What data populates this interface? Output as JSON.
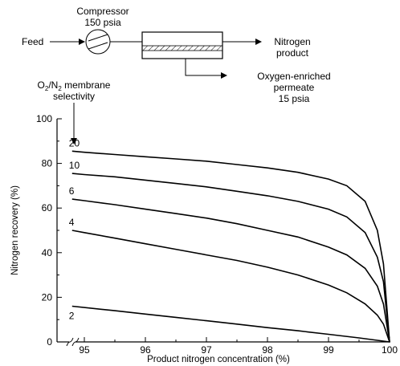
{
  "diagram": {
    "compressor_label": "Compressor",
    "compressor_pressure": "150 psia",
    "feed_label": "Feed",
    "nitrogen_label_line1": "Nitrogen",
    "nitrogen_label_line2": "product",
    "permeate_line1": "Oxygen-enriched",
    "permeate_line2": "permeate",
    "permeate_line3": "15 psia",
    "selectivity_pre": "O",
    "selectivity_sub1": "2",
    "selectivity_mid": "/N",
    "selectivity_sub2": "2",
    "selectivity_post": " membrane",
    "selectivity_line2": "selectivity"
  },
  "chart_data": {
    "type": "line",
    "title": "",
    "xlabel": "Product nitrogen concentration (%)",
    "ylabel": "Nitrogen recovery (%)",
    "xlim": [
      94.7,
      100
    ],
    "ylim": [
      0,
      100
    ],
    "x_ticks": [
      "95",
      "96",
      "97",
      "98",
      "99",
      "100"
    ],
    "y_ticks": [
      "0",
      "20",
      "40",
      "60",
      "80",
      "100"
    ],
    "grid": false,
    "axis_break": true,
    "series": [
      {
        "name": "2",
        "points": [
          [
            94.8,
            16
          ],
          [
            95.5,
            14
          ],
          [
            96,
            12.5
          ],
          [
            96.5,
            11
          ],
          [
            97,
            9.5
          ],
          [
            97.5,
            8
          ],
          [
            98,
            6.4
          ],
          [
            98.5,
            5
          ],
          [
            99,
            3.4
          ],
          [
            99.5,
            1.8
          ],
          [
            100,
            0
          ]
        ]
      },
      {
        "name": "4",
        "points": [
          [
            94.8,
            50
          ],
          [
            95,
            49
          ],
          [
            95.5,
            46.5
          ],
          [
            96,
            44
          ],
          [
            96.5,
            41.5
          ],
          [
            97,
            39
          ],
          [
            97.5,
            36.5
          ],
          [
            98,
            33.5
          ],
          [
            98.5,
            30
          ],
          [
            99,
            25.5
          ],
          [
            99.3,
            22
          ],
          [
            99.6,
            17
          ],
          [
            99.8,
            12
          ],
          [
            99.9,
            8
          ],
          [
            100,
            0
          ]
        ]
      },
      {
        "name": "6",
        "points": [
          [
            94.8,
            64
          ],
          [
            95,
            63.3
          ],
          [
            95.5,
            61.5
          ],
          [
            96,
            59.5
          ],
          [
            96.5,
            57.5
          ],
          [
            97,
            55.5
          ],
          [
            97.5,
            53
          ],
          [
            98,
            50
          ],
          [
            98.5,
            47
          ],
          [
            99,
            42.5
          ],
          [
            99.3,
            39
          ],
          [
            99.6,
            33
          ],
          [
            99.8,
            25
          ],
          [
            99.9,
            17
          ],
          [
            100,
            0
          ]
        ]
      },
      {
        "name": "10",
        "points": [
          [
            94.8,
            75.5
          ],
          [
            95,
            75
          ],
          [
            95.5,
            74
          ],
          [
            96,
            72.5
          ],
          [
            96.5,
            71
          ],
          [
            97,
            69.5
          ],
          [
            97.5,
            67.5
          ],
          [
            98,
            65.5
          ],
          [
            98.5,
            63
          ],
          [
            99,
            59.5
          ],
          [
            99.3,
            56
          ],
          [
            99.6,
            49
          ],
          [
            99.8,
            38
          ],
          [
            99.9,
            27
          ],
          [
            100,
            0
          ]
        ]
      },
      {
        "name": "20",
        "points": [
          [
            94.8,
            85.5
          ],
          [
            95,
            85
          ],
          [
            95.5,
            84
          ],
          [
            96,
            83
          ],
          [
            96.5,
            82
          ],
          [
            97,
            81
          ],
          [
            97.5,
            79.5
          ],
          [
            98,
            78
          ],
          [
            98.5,
            76
          ],
          [
            99,
            73
          ],
          [
            99.3,
            70
          ],
          [
            99.6,
            63
          ],
          [
            99.8,
            50
          ],
          [
            99.9,
            35
          ],
          [
            100,
            0
          ]
        ]
      }
    ]
  }
}
